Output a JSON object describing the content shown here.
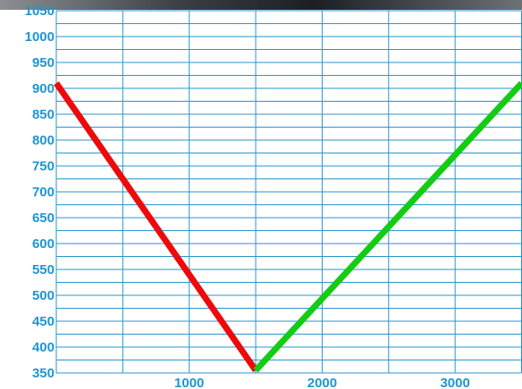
{
  "chart_data": {
    "type": "line",
    "series": [
      {
        "color": "#ee0a0a",
        "x": [
          0,
          1500
        ],
        "values": [
          910,
          355
        ]
      },
      {
        "color": "#13cc13",
        "x": [
          1500,
          3500
        ],
        "values": [
          355,
          910
        ]
      }
    ],
    "xlim": [
      0,
      3500
    ],
    "xticks": [
      1000,
      2000,
      3000
    ],
    "minor_xticks": [
      500,
      1500,
      2500,
      3500
    ],
    "ylim": [
      350,
      1050
    ],
    "yticks": [
      350,
      400,
      450,
      500,
      550,
      600,
      650,
      700,
      750,
      800,
      850,
      900,
      950,
      1000,
      1050
    ],
    "minor_yticks": [
      375,
      425,
      475,
      525,
      575,
      625,
      675,
      725,
      775,
      825,
      875,
      925,
      975,
      1025
    ],
    "grid": true
  }
}
